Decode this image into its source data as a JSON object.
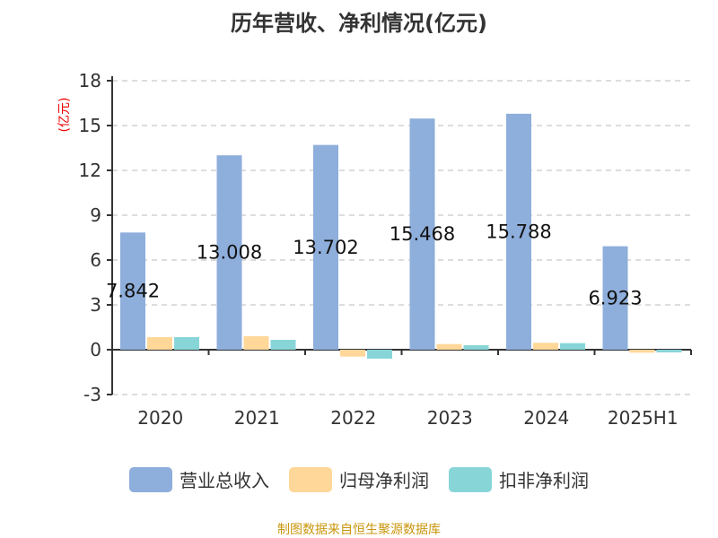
{
  "chart_data": {
    "type": "bar",
    "title": "历年营收、净利情况(亿元)",
    "ylabel": "(亿元)",
    "categories": [
      "2020",
      "2021",
      "2022",
      "2023",
      "2024",
      "2025H1"
    ],
    "ylim": [
      -3,
      18
    ],
    "yticks": [
      -3,
      0,
      3,
      6,
      9,
      12,
      15,
      18
    ],
    "grid": true,
    "legend_position": "bottom",
    "series": [
      {
        "name": "营业总收入",
        "color": "#8eaedb",
        "values": [
          7.842,
          13.008,
          13.702,
          15.468,
          15.788,
          6.923
        ],
        "labels": [
          "7.842",
          "13.008",
          "13.702",
          "15.468",
          "15.788",
          "6.923"
        ]
      },
      {
        "name": "归母净利润",
        "color": "#ffd799",
        "values": [
          0.84,
          0.9,
          -0.46,
          0.38,
          0.46,
          -0.2
        ]
      },
      {
        "name": "扣非净利润",
        "color": "#88d5d8",
        "values": [
          0.84,
          0.66,
          -0.6,
          0.3,
          0.44,
          -0.18
        ]
      }
    ]
  },
  "source": "制图数据来自恒生聚源数据库"
}
